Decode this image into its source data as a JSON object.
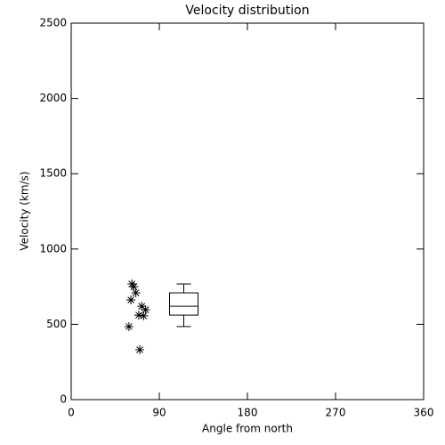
{
  "chart_data": {
    "type": "scatter",
    "title": "Velocity distribution",
    "x_label": "Angle from north",
    "y_label": "Velocity (km/s)",
    "x": [
      62,
      64,
      66,
      61,
      72,
      76,
      69,
      74,
      59,
      70
    ],
    "values": [
      768,
      750,
      709,
      662,
      620,
      597,
      561,
      556,
      485,
      331
    ],
    "marker": "asterisk",
    "color": "#000000",
    "box": {
      "x": 115,
      "whislo": 485,
      "q1": 561,
      "med": 620,
      "q3": 709,
      "whishi": 768
    },
    "xlim": [
      0,
      360
    ],
    "xticks": [
      0,
      90,
      180,
      270,
      360
    ],
    "ylim": [
      0,
      2500
    ],
    "yticks": [
      0,
      500,
      1000,
      1500,
      2000,
      2500
    ]
  }
}
